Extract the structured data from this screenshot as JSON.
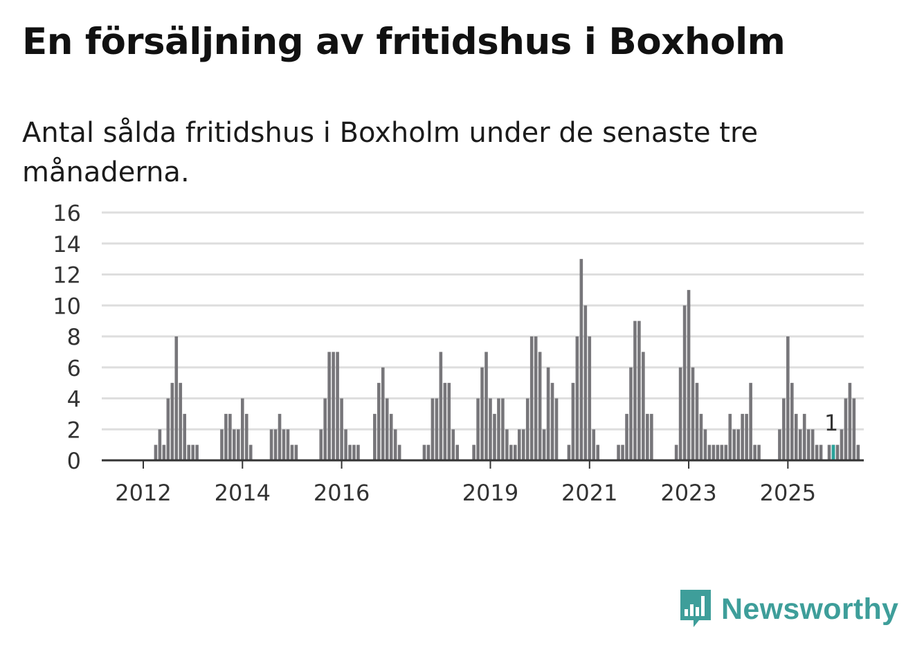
{
  "header": {
    "title": "En försäljning av fritidshus i Boxholm",
    "subtitle": "Antal sålda fritidshus i Boxholm under de senaste tre månaderna."
  },
  "brand": {
    "name": "Newsworthy",
    "icon": "newsworthy-logo-icon",
    "color": "#3e9e9a"
  },
  "chart_data": {
    "type": "bar",
    "title": "En försäljning av fritidshus i Boxholm",
    "subtitle": "Antal sålda fritidshus i Boxholm under de senaste tre månaderna.",
    "xlabel": "",
    "ylabel": "",
    "ylim": [
      0,
      16
    ],
    "yticks": [
      0,
      2,
      4,
      6,
      8,
      10,
      12,
      14,
      16
    ],
    "xticks": [
      {
        "label": "2012",
        "index": 6
      },
      {
        "label": "2014",
        "index": 30
      },
      {
        "label": "2016",
        "index": 54
      },
      {
        "label": "2019",
        "index": 90
      },
      {
        "label": "2021",
        "index": 114
      },
      {
        "label": "2023",
        "index": 138
      },
      {
        "label": "2025",
        "index": 162
      }
    ],
    "grid": true,
    "bar_color": "#77767a",
    "highlight_color": "#2aa39b",
    "highlight_label": "1",
    "highlight_index": 173,
    "values": [
      0,
      0,
      0,
      0,
      0,
      0,
      0,
      0,
      0,
      1,
      2,
      1,
      4,
      5,
      8,
      5,
      3,
      1,
      1,
      1,
      0,
      0,
      0,
      0,
      0,
      2,
      3,
      3,
      2,
      2,
      4,
      3,
      1,
      0,
      0,
      0,
      0,
      2,
      2,
      3,
      2,
      2,
      1,
      1,
      0,
      0,
      0,
      0,
      0,
      2,
      4,
      7,
      7,
      7,
      4,
      2,
      1,
      1,
      1,
      0,
      0,
      0,
      3,
      5,
      6,
      4,
      3,
      2,
      1,
      0,
      0,
      0,
      0,
      0,
      1,
      1,
      4,
      4,
      7,
      5,
      5,
      2,
      1,
      0,
      0,
      0,
      1,
      4,
      6,
      7,
      4,
      3,
      4,
      4,
      2,
      1,
      1,
      2,
      2,
      4,
      8,
      8,
      7,
      2,
      6,
      5,
      4,
      0,
      0,
      1,
      5,
      8,
      13,
      10,
      8,
      2,
      1,
      0,
      0,
      0,
      0,
      1,
      1,
      3,
      6,
      9,
      9,
      7,
      3,
      3,
      0,
      0,
      0,
      0,
      0,
      1,
      6,
      10,
      11,
      6,
      5,
      3,
      2,
      1,
      1,
      1,
      1,
      1,
      3,
      2,
      2,
      3,
      3,
      5,
      1,
      1,
      0,
      0,
      0,
      0,
      2,
      4,
      8,
      5,
      3,
      2,
      3,
      2,
      2,
      1,
      1,
      0,
      1,
      1,
      1,
      2,
      4,
      5,
      4,
      1
    ]
  }
}
